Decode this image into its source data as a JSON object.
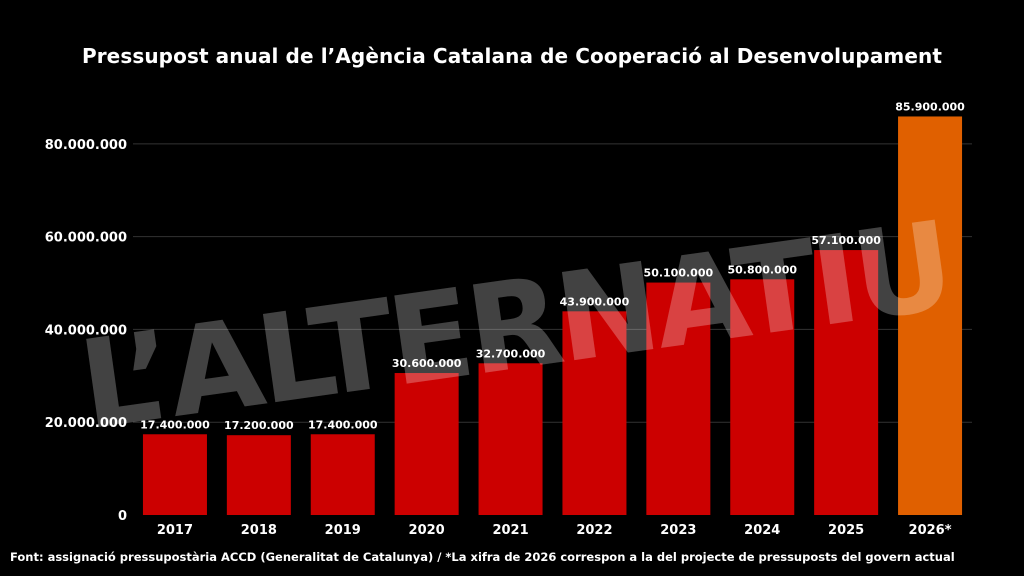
{
  "chart_data": {
    "type": "bar",
    "title": "Pressupost anual de l’Agència Catalana de Cooperació al Desenvolupament",
    "categories": [
      "2017",
      "2018",
      "2019",
      "2020",
      "2021",
      "2022",
      "2023",
      "2024",
      "2025",
      "2026*"
    ],
    "values": [
      17400000,
      17200000,
      17400000,
      30600000,
      32700000,
      43900000,
      50100000,
      50800000,
      57100000,
      85900000
    ],
    "value_labels": [
      "17.400.000",
      "17.200.000",
      "17.400.000",
      "30.600.000",
      "32.700.000",
      "43.900.000",
      "50.100.000",
      "50.800.000",
      "57.100.000",
      "85.900.000"
    ],
    "bar_colors": [
      "#cc0000",
      "#cc0000",
      "#cc0000",
      "#cc0000",
      "#cc0000",
      "#cc0000",
      "#cc0000",
      "#cc0000",
      "#cc0000",
      "#e06000"
    ],
    "yticks": [
      0,
      20000000,
      40000000,
      60000000,
      80000000
    ],
    "ytick_labels": [
      "0",
      "20.000.000",
      "40.000.000",
      "60.000.000",
      "80.000.000"
    ],
    "ylim": [
      0,
      86000000
    ],
    "grid": true,
    "xlabel": "",
    "ylabel": ""
  },
  "watermark": "L’ALTERNATIU",
  "source": "Font: assignació pressupostària ACCD (Generalitat de Catalunya) / *La xifra de 2026 correspon a la del projecte de pressuposts del govern actual",
  "colors": {
    "background": "#000000",
    "bar": "#cc0000",
    "highlight": "#e06000",
    "grid": "#333333"
  }
}
